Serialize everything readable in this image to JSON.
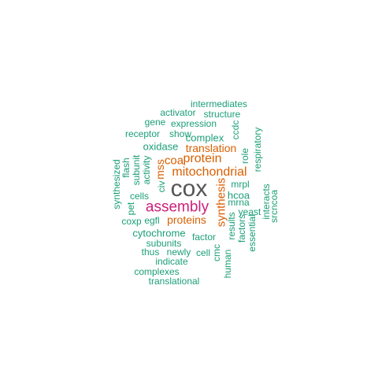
{
  "colors": {
    "gray": "#555555",
    "magenta": "#cc1f7a",
    "orange": "#d95f02",
    "green": "#1b9e77"
  },
  "words": [
    {
      "text": "cox",
      "color": "#555555"
    },
    {
      "text": "assembly",
      "color": "#cc1f7a"
    },
    {
      "text": "mitochondrial",
      "color": "#d95f02"
    },
    {
      "text": "protein",
      "color": "#d95f02"
    },
    {
      "text": "translation",
      "color": "#d95f02"
    },
    {
      "text": "proteins",
      "color": "#d95f02"
    },
    {
      "text": "coa",
      "color": "#d95f02"
    },
    {
      "text": "mss",
      "color": "#d95f02"
    },
    {
      "text": "synthesis",
      "color": "#d95f02"
    },
    {
      "text": "complex",
      "color": "#1b9e77"
    },
    {
      "text": "oxidase",
      "color": "#1b9e77"
    },
    {
      "text": "cytochrome",
      "color": "#1b9e77"
    },
    {
      "text": "intermediates",
      "color": "#1b9e77"
    },
    {
      "text": "activator",
      "color": "#1b9e77"
    },
    {
      "text": "structure",
      "color": "#1b9e77"
    },
    {
      "text": "gene",
      "color": "#1b9e77"
    },
    {
      "text": "expression",
      "color": "#1b9e77"
    },
    {
      "text": "ccdc",
      "color": "#1b9e77"
    },
    {
      "text": "receptor",
      "color": "#1b9e77"
    },
    {
      "text": "show",
      "color": "#1b9e77"
    },
    {
      "text": "respiratory",
      "color": "#1b9e77"
    },
    {
      "text": "role",
      "color": "#1b9e77"
    },
    {
      "text": "flash",
      "color": "#1b9e77"
    },
    {
      "text": "subunit",
      "color": "#1b9e77"
    },
    {
      "text": "activity",
      "color": "#1b9e77"
    },
    {
      "text": "synthesized",
      "color": "#1b9e77"
    },
    {
      "text": "civ",
      "color": "#1b9e77"
    },
    {
      "text": "mrpl",
      "color": "#1b9e77"
    },
    {
      "text": "hcoa",
      "color": "#1b9e77"
    },
    {
      "text": "mrna",
      "color": "#1b9e77"
    },
    {
      "text": "interacts",
      "color": "#1b9e77"
    },
    {
      "text": "srcncoa",
      "color": "#1b9e77"
    },
    {
      "text": "cells",
      "color": "#1b9e77"
    },
    {
      "text": "pet",
      "color": "#1b9e77"
    },
    {
      "text": "yeast",
      "color": "#1b9e77"
    },
    {
      "text": "coxp",
      "color": "#1b9e77"
    },
    {
      "text": "egfl",
      "color": "#1b9e77"
    },
    {
      "text": "results",
      "color": "#1b9e77"
    },
    {
      "text": "factors",
      "color": "#1b9e77"
    },
    {
      "text": "essential",
      "color": "#1b9e77"
    },
    {
      "text": "factor",
      "color": "#1b9e77"
    },
    {
      "text": "subunits",
      "color": "#1b9e77"
    },
    {
      "text": "thus",
      "color": "#1b9e77"
    },
    {
      "text": "newly",
      "color": "#1b9e77"
    },
    {
      "text": "cell",
      "color": "#1b9e77"
    },
    {
      "text": "cmc",
      "color": "#1b9e77"
    },
    {
      "text": "human",
      "color": "#1b9e77"
    },
    {
      "text": "indicate",
      "color": "#1b9e77"
    },
    {
      "text": "complexes",
      "color": "#1b9e77"
    },
    {
      "text": "translational",
      "color": "#1b9e77"
    }
  ]
}
